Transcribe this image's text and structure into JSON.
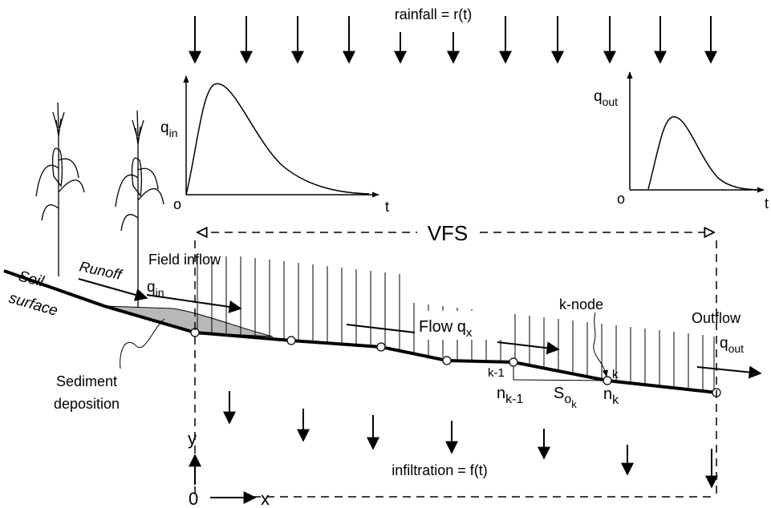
{
  "labels": {
    "rainfall": "rainfall = r(t)",
    "infiltration": "infiltration = f(t)",
    "vfs": "VFS",
    "field_inflow": "Field inflow",
    "runoff": "Runoff",
    "soil": "Soil",
    "surface": "surface",
    "sediment_line1": "Sediment",
    "sediment_line2": "deposition",
    "k_node": "k-node",
    "flow": "Flow q",
    "flow_sub": "x",
    "outflow": "Outflow",
    "q_letter": "q",
    "in_sub": "in",
    "out_sub": "out",
    "k_minus_1": "k-1",
    "k": "k",
    "n_letter": "n",
    "S_letter": "S",
    "o_sub": "o",
    "origin_o": "o",
    "t_axis": "t",
    "zero": "0",
    "x_axis": "x",
    "y_axis": "y"
  }
}
